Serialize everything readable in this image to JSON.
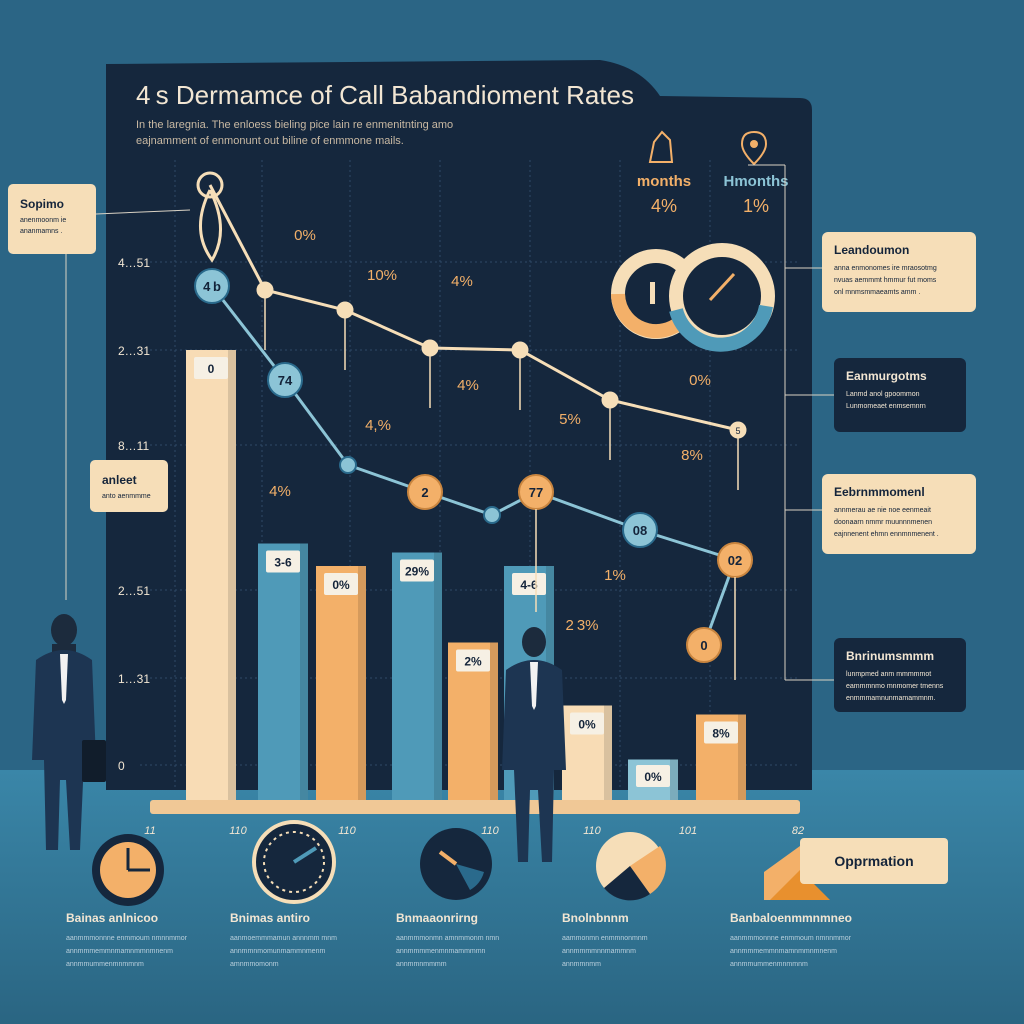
{
  "title": "4 s Dermamce of Call Babandioment Rates",
  "subtitle_lines": [
    "In the laregnia. The enloess bieling pice lain re enmenitnting amo",
    "eajnamment of enmonunt out biline of enmmone mails."
  ],
  "colors": {
    "background": "#2b6585",
    "panel": "#15273d",
    "beige": "#f8dcb5",
    "orange": "#f3b069",
    "blue": "#4f9ab8",
    "light_blue": "#8cc4d6",
    "cream": "#f6deb8",
    "dark_text": "#14243a"
  },
  "chart_data": {
    "type": "bar",
    "y_tick_labels": [
      "4…51",
      "2…31",
      "8…11",
      "2…51",
      "1…31",
      "0"
    ],
    "x_tick_labels": [
      "11",
      "110",
      "110",
      "110",
      "110",
      "101",
      "82"
    ],
    "bars": [
      {
        "height": 100,
        "color": "beige",
        "label": "0"
      },
      {
        "height": 57,
        "color": "blue",
        "label": "3-6"
      },
      {
        "height": 52,
        "color": "orange",
        "label": "0%"
      },
      {
        "height": 55,
        "color": "blue",
        "label": "29%"
      },
      {
        "height": 35,
        "color": "orange",
        "label": "2%"
      },
      {
        "height": 52,
        "color": "blue",
        "label": "4-6"
      },
      {
        "height": 21,
        "color": "beige",
        "label": "0%"
      },
      {
        "height": 9,
        "color": "light_blue",
        "label": "0%"
      },
      {
        "height": 19,
        "color": "orange",
        "label": "8%"
      }
    ],
    "line_top": {
      "name": "",
      "points": [
        {
          "v": 100,
          "label": ""
        },
        {
          "v": 87,
          "label": ""
        },
        {
          "v": 83,
          "label": ""
        },
        {
          "v": 77,
          "label": ""
        },
        {
          "v": 76,
          "label": ""
        },
        {
          "v": 68,
          "label": ""
        },
        {
          "v": 63,
          "label": "5"
        }
      ]
    },
    "line_bottom": {
      "points": [
        {
          "v": 90,
          "label": "4 b"
        },
        {
          "v": 77,
          "label": "74"
        },
        {
          "v": 64,
          "label": ""
        },
        {
          "v": 57,
          "label": "2"
        },
        {
          "v": 54,
          "label": ""
        },
        {
          "v": 57,
          "label": "77"
        },
        {
          "v": 52,
          "label": "08"
        },
        {
          "v": 46,
          "label": "02"
        },
        {
          "v": 37,
          "label": "0"
        }
      ]
    },
    "floating_labels": [
      "0%",
      "10%",
      "4%",
      "4,%",
      "4%",
      "4%",
      "5%",
      "0%",
      "8%",
      "1%",
      "2 3%"
    ]
  },
  "stats": [
    {
      "label": "months",
      "value": "4%"
    },
    {
      "label": "Hmonths",
      "value": "1%"
    }
  ],
  "callouts_right": [
    {
      "title": "Leandoumon",
      "lines": [
        "anna enmonomes ire mraosotmg",
        "nvuas aemmmt hmmur fut moms",
        "onl mnmsmmaeamts amm ."
      ],
      "style": "cream"
    },
    {
      "title": "Eanmurgotms",
      "lines": [
        "Lanmd anol gpoommon",
        "Lunmomeaet enmsemnrn"
      ],
      "style": "dark"
    },
    {
      "title": "Eebrnmmomenl",
      "lines": [
        "annmerau ae nie noe eenmeait",
        "doonaarn nmmr muunnnmenen",
        "eajnnenent ehmn ennmnmenent ."
      ],
      "style": "cream"
    },
    {
      "title": "Bnrinumsmmm",
      "lines": [
        "lunmpmed anm mmmmmot",
        "eammmnmo mnmomer tmenns",
        "enmmmamnunmamammnm."
      ],
      "style": "dark"
    }
  ],
  "callouts_left": [
    {
      "title": "Sopimo",
      "lines": [
        "anenmoonm ie",
        "ananmamns ."
      ]
    },
    {
      "title": "anleet",
      "lines": [
        "anto aenmmme"
      ]
    }
  ],
  "bottom_sections": [
    {
      "title": "Bainas anlnicoo",
      "lines": [
        "aanmmmonnne enmmoum nmnnmmor",
        "annmmmemmnmamnmmnmnenm",
        "annmmummenmnmmnm"
      ]
    },
    {
      "title": "Bnimas antiro",
      "lines": [
        "aanmoemmmamun annnmm mnm",
        "annmmnmomunmammnmenm",
        "amnmmomonm"
      ]
    },
    {
      "title": "Bnmaaonrirng",
      "lines": [
        "aanmmmonmn amnmmonm nmn",
        "annmmmmenmnmammmmn",
        "annmmnmmmm"
      ]
    },
    {
      "title": "Bnolnbnnm",
      "lines": [
        "aammonmn enmmnonmnm",
        "annmmmmnnmammnm",
        "annmmnmm"
      ]
    },
    {
      "title": "Banbaloenmmnmneo",
      "lines": [
        "aanmmmonnne enmmoum nmnnmmor",
        "annmmmemmnmamnmmnmnenm",
        "annmmummenmnmmnm"
      ]
    }
  ],
  "opportunity_label": "Opprmation"
}
